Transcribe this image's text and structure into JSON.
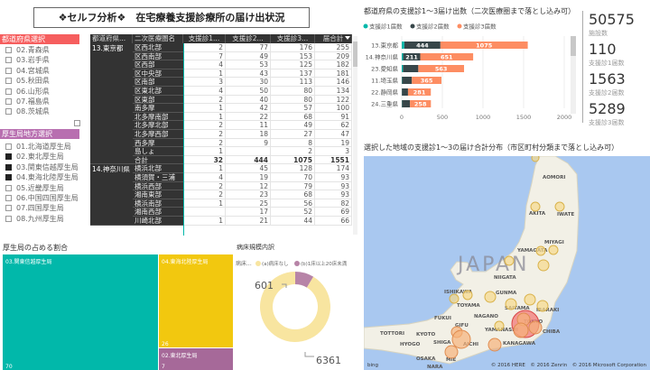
{
  "title": "❖セルフ分析❖　在宅療養支援診療所の届け出状況",
  "pref_slicer": {
    "header": "都道府県選択",
    "color": "#f65e5e",
    "items": [
      {
        "label": "02.青森県",
        "checked": false
      },
      {
        "label": "03.岩手県",
        "checked": false
      },
      {
        "label": "04.宮城県",
        "checked": false
      },
      {
        "label": "05.秋田県",
        "checked": false
      },
      {
        "label": "06.山形県",
        "checked": false
      },
      {
        "label": "07.福島県",
        "checked": false
      },
      {
        "label": "08.茨城県",
        "checked": false
      }
    ]
  },
  "bureau_slicer": {
    "header": "厚生局地方選択",
    "color": "#b86fb0",
    "items": [
      {
        "label": "01.北海道厚生局",
        "checked": false
      },
      {
        "label": "02.東北厚生局",
        "checked": true
      },
      {
        "label": "03.関東信越厚生局",
        "checked": true
      },
      {
        "label": "04.東海北陸厚生局",
        "checked": true
      },
      {
        "label": "05.近畿厚生局",
        "checked": false
      },
      {
        "label": "06.中国四国厚生局",
        "checked": false
      },
      {
        "label": "07.四国厚生局",
        "checked": false
      },
      {
        "label": "08.九州厚生局",
        "checked": false
      }
    ]
  },
  "table": {
    "columns": [
      "都道府県...",
      "二次医療圏名",
      "支援診1...",
      "支援診2...",
      "支援診3...",
      "届合計"
    ],
    "sort_icon": "sort-desc-icon",
    "groups": [
      {
        "pref": "13.東京都",
        "rows": [
          [
            "区西北部",
            "2",
            "77",
            "176",
            "255"
          ],
          [
            "区西南部",
            "7",
            "49",
            "153",
            "209"
          ],
          [
            "区西部",
            "4",
            "53",
            "125",
            "182"
          ],
          [
            "区中央部",
            "1",
            "43",
            "137",
            "181"
          ],
          [
            "区南部",
            "3",
            "30",
            "113",
            "146"
          ],
          [
            "区東北部",
            "4",
            "50",
            "80",
            "134"
          ],
          [
            "区東部",
            "2",
            "40",
            "80",
            "122"
          ],
          [
            "南多摩",
            "1",
            "42",
            "57",
            "100"
          ],
          [
            "北多摩南部",
            "1",
            "22",
            "68",
            "91"
          ],
          [
            "北多摩北部",
            "2",
            "11",
            "49",
            "62"
          ],
          [
            "北多摩西部",
            "2",
            "18",
            "27",
            "47"
          ],
          [
            "西多摩",
            "2",
            "9",
            "8",
            "19"
          ],
          [
            "島しょ",
            "1",
            "",
            "2",
            "3"
          ]
        ],
        "total": [
          "合計",
          "32",
          "444",
          "1075",
          "1551"
        ]
      },
      {
        "pref": "14.神奈川県",
        "rows": [
          [
            "横浜北部",
            "1",
            "45",
            "128",
            "174"
          ],
          [
            "横須賀・三浦",
            "4",
            "19",
            "70",
            "93"
          ],
          [
            "横浜西部",
            "2",
            "12",
            "79",
            "93"
          ],
          [
            "湘南東部",
            "2",
            "23",
            "68",
            "93"
          ],
          [
            "横浜南部",
            "1",
            "25",
            "56",
            "82"
          ],
          [
            "湘南西部",
            "",
            "17",
            "52",
            "69"
          ],
          [
            "川崎北部",
            "1",
            "21",
            "44",
            "66"
          ]
        ]
      }
    ]
  },
  "bar_chart": {
    "title": "都道府県の支援診1～3届け出数（二次医療圏まで落とし込み可）",
    "chart_data": {
      "type": "bar",
      "orientation": "horizontal",
      "stacked": true,
      "categories": [
        "13.東京都",
        "14.神奈川県",
        "23.愛知県",
        "11.埼玉県",
        "22.静岡県",
        "24.三重県"
      ],
      "series": [
        {
          "name": "支援診1届数",
          "color": "#01b8aa",
          "values": [
            32,
            17,
            15,
            4,
            2,
            3
          ]
        },
        {
          "name": "支援診2届数",
          "color": "#374649",
          "values": [
            444,
            211,
            189,
            120,
            75,
            98
          ]
        },
        {
          "name": "支援診3届数",
          "color": "#fd8d62",
          "values": [
            1075,
            651,
            563,
            365,
            281,
            258
          ]
        }
      ],
      "xlim": [
        0,
        2100
      ],
      "xticks": [
        0,
        500,
        1000,
        1500,
        2000
      ],
      "data_labels": true
    }
  },
  "kpis": [
    {
      "value": "50575",
      "label": "施設数"
    },
    {
      "value": "110",
      "label": "支援診1届数"
    },
    {
      "value": "1563",
      "label": "支援診2届数"
    },
    {
      "value": "5289",
      "label": "支援診3届数"
    }
  ],
  "treemap": {
    "title": "厚生局の占める割合",
    "chart_data": {
      "type": "treemap",
      "items": [
        {
          "label": "03.関東信越厚生局",
          "value": 70,
          "color": "#01b8aa"
        },
        {
          "label": "04.東海北陸厚生局",
          "value": 26,
          "color": "#f2c80f"
        },
        {
          "label": "02.東北厚生局",
          "value": 7,
          "color": "#a66999"
        }
      ]
    }
  },
  "donut": {
    "title": "病床規模内訳",
    "legend_title": "病床...",
    "chart_data": {
      "type": "pie",
      "hole": true,
      "slices": [
        {
          "label": "(a)病床なし",
          "value": 6361,
          "color": "#f8e5a0"
        },
        {
          "label": "(b)1床以上20床未満",
          "value": 601,
          "color": "#b784a7"
        }
      ]
    }
  },
  "map": {
    "title": "選択した地域の支援診1～3の届け合計分布（市区町村分類まで落とし込み可）",
    "country": "JAPAN",
    "bing": "bing",
    "labels": [
      "AOMORI",
      "AKITA",
      "IWATE",
      "MIYAGI",
      "YAMAGATA",
      "NIIGATA",
      "ISHIKAWA",
      "TOYAMA",
      "GUNMA",
      "SAITAMA",
      "IBARAKI",
      "NAGANO",
      "FUKUI",
      "GIFU",
      "YAMANASHI",
      "TOKYO",
      "CHIBA",
      "KANAGAWA",
      "AICHI",
      "SHIGA",
      "KYOTO",
      "TOTTORI",
      "HYOGO",
      "OSAKA",
      "MIE",
      "NARA"
    ],
    "copyright": "© 2016 HERE　© 2016 Zenrin　© 2016 Microsoft Corporation",
    "water": "#a9c8f0",
    "land": "#f2f0e6"
  }
}
